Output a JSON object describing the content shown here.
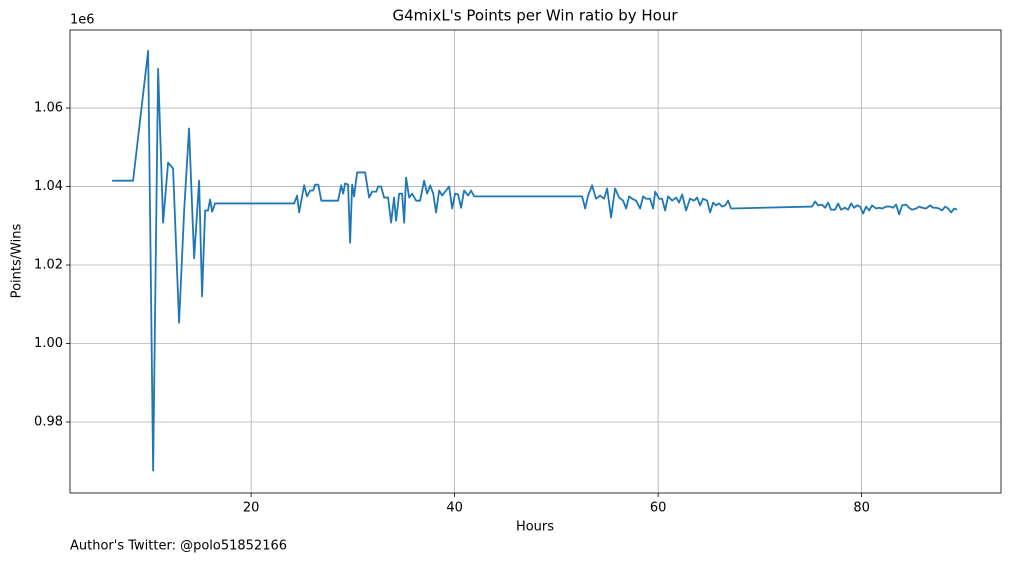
{
  "chart_data": {
    "type": "line",
    "title": "G4mixL's Points per Win ratio by Hour",
    "x_label": "Hours",
    "y_label": "Points/Wins",
    "y_offset_label": "1e6",
    "footer": "Author's Twitter: @polo51852166",
    "grid": true,
    "xlim": [
      2.2,
      93.7
    ],
    "ylim": [
      961900,
      1079900
    ],
    "xticks": [
      20,
      40,
      60,
      80
    ],
    "yticks": [
      {
        "value": 980000,
        "label": "0.98"
      },
      {
        "value": 1000000,
        "label": "1.00"
      },
      {
        "value": 1020000,
        "label": "1.02"
      },
      {
        "value": 1040000,
        "label": "1.04"
      },
      {
        "value": 1060000,
        "label": "1.06"
      }
    ],
    "series": [
      {
        "color": "#1f77b4",
        "x": [
          6.34,
          8.4,
          9.88,
          10.37,
          10.86,
          11.35,
          11.84,
          12.33,
          12.92,
          13.42,
          13.9,
          14.4,
          14.89,
          15.18,
          15.48,
          15.77,
          15.97,
          16.17,
          16.46,
          24.23,
          24.52,
          24.72,
          25.21,
          25.5,
          25.8,
          26.1,
          26.3,
          26.6,
          26.9,
          28.55,
          28.85,
          29.05,
          29.24,
          29.53,
          29.73,
          29.93,
          30.12,
          30.42,
          31.2,
          31.6,
          31.9,
          32.3,
          32.48,
          32.78,
          33.07,
          33.46,
          33.76,
          34.05,
          34.25,
          34.55,
          34.84,
          35.04,
          35.23,
          35.53,
          35.82,
          36.22,
          36.61,
          37.0,
          37.3,
          37.6,
          37.9,
          38.18,
          38.48,
          38.77,
          39.16,
          39.46,
          39.76,
          40.05,
          40.34,
          40.64,
          40.93,
          41.33,
          41.62,
          41.92,
          52.53,
          52.83,
          53.12,
          53.51,
          53.9,
          54.3,
          54.69,
          54.99,
          55.38,
          55.77,
          56.17,
          56.56,
          56.86,
          57.15,
          57.44,
          57.84,
          58.23,
          58.53,
          58.82,
          59.21,
          59.51,
          59.71,
          60.1,
          60.39,
          60.69,
          60.98,
          61.38,
          61.77,
          62.06,
          62.36,
          62.75,
          63.14,
          63.54,
          63.83,
          64.13,
          64.42,
          64.82,
          65.11,
          65.41,
          65.7,
          65.99,
          66.29,
          66.59,
          66.88,
          67.17,
          75.13,
          75.43,
          75.72,
          76.11,
          76.41,
          76.7,
          77.0,
          77.39,
          77.69,
          77.98,
          78.38,
          78.67,
          78.97,
          79.26,
          79.56,
          79.85,
          80.15,
          80.44,
          80.74,
          81.03,
          81.43,
          81.72,
          82.01,
          82.41,
          82.8,
          83.1,
          83.39,
          83.69,
          83.98,
          84.37,
          84.67,
          84.96,
          85.36,
          85.65,
          85.95,
          86.34,
          86.73,
          87.03,
          87.32,
          87.62,
          87.91,
          88.21,
          88.5,
          88.8,
          89.09,
          89.39
        ],
        "values": [
          1041500,
          1041500,
          1074600,
          967600,
          1070000,
          1030800,
          1046100,
          1044600,
          1005300,
          1033900,
          1054800,
          1021700,
          1041500,
          1012000,
          1033900,
          1033900,
          1036700,
          1033600,
          1035700,
          1035700,
          1037700,
          1033400,
          1040300,
          1037500,
          1039000,
          1039000,
          1040500,
          1040500,
          1036400,
          1036400,
          1040300,
          1038200,
          1040800,
          1040500,
          1025700,
          1040500,
          1037500,
          1043600,
          1043600,
          1037200,
          1038700,
          1038700,
          1040000,
          1040000,
          1037200,
          1037200,
          1030800,
          1037200,
          1031300,
          1038200,
          1038200,
          1030800,
          1042300,
          1037200,
          1038200,
          1036400,
          1036400,
          1041500,
          1038200,
          1040300,
          1038200,
          1033400,
          1039000,
          1037700,
          1039000,
          1040000,
          1034400,
          1038200,
          1038000,
          1034600,
          1039000,
          1037700,
          1039000,
          1037500,
          1037500,
          1034400,
          1037700,
          1040300,
          1036900,
          1037700,
          1036900,
          1039500,
          1032100,
          1039500,
          1037200,
          1036400,
          1034400,
          1037500,
          1036900,
          1036400,
          1034400,
          1037500,
          1036900,
          1036900,
          1034400,
          1038700,
          1036900,
          1036900,
          1033900,
          1037500,
          1036400,
          1037200,
          1035900,
          1038000,
          1033900,
          1036900,
          1036400,
          1037200,
          1035200,
          1036900,
          1036400,
          1033400,
          1035900,
          1035200,
          1035700,
          1034900,
          1035200,
          1036400,
          1034400,
          1034900,
          1036200,
          1035200,
          1035400,
          1034600,
          1035900,
          1034100,
          1034100,
          1035700,
          1034100,
          1034600,
          1034100,
          1035700,
          1034600,
          1035200,
          1034900,
          1033100,
          1034900,
          1033900,
          1035200,
          1034400,
          1034600,
          1034400,
          1034900,
          1034900,
          1034600,
          1035400,
          1032900,
          1035200,
          1035400,
          1034600,
          1034100,
          1034400,
          1034900,
          1034600,
          1034400,
          1035200,
          1034600,
          1034600,
          1034400,
          1033900,
          1034900,
          1034400,
          1033400,
          1034400,
          1034100
        ]
      }
    ]
  }
}
